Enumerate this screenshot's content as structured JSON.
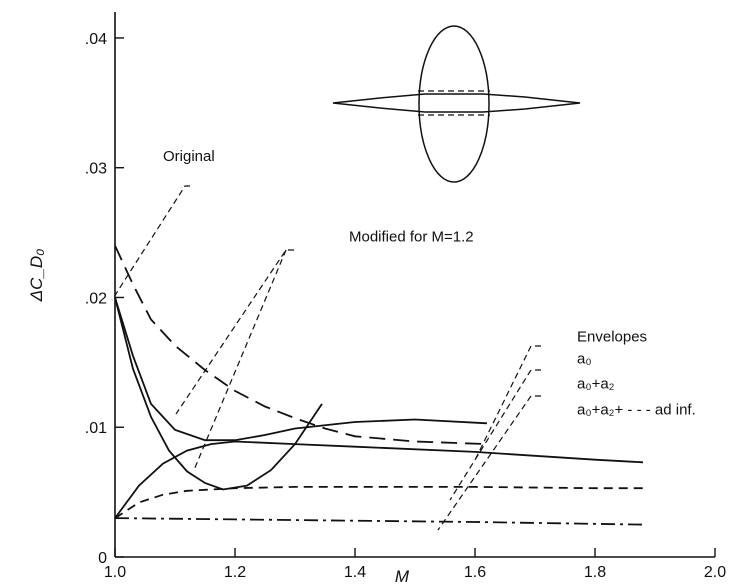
{
  "chart_data": {
    "type": "line",
    "xlabel": "M",
    "ylabel": "ΔC_D₀",
    "xlim": [
      1.0,
      2.0
    ],
    "ylim": [
      0,
      0.042
    ],
    "grid": false,
    "x_ticks": [
      {
        "v": 1.0,
        "label": "1.0"
      },
      {
        "v": 1.2,
        "label": "1.2"
      },
      {
        "v": 1.4,
        "label": "1.4"
      },
      {
        "v": 1.6,
        "label": "1.6"
      },
      {
        "v": 1.8,
        "label": "1.8"
      },
      {
        "v": 2.0,
        "label": "2.0"
      }
    ],
    "y_ticks": [
      {
        "v": 0,
        "label": "0"
      },
      {
        "v": 0.01,
        "label": ".01"
      },
      {
        "v": 0.02,
        "label": ".02"
      },
      {
        "v": 0.03,
        "label": ".03"
      },
      {
        "v": 0.04,
        "label": ".04"
      }
    ],
    "series": [
      {
        "name": "Original",
        "style": "long-dash",
        "points": [
          [
            1.0,
            0.024
          ],
          [
            1.03,
            0.021
          ],
          [
            1.06,
            0.0183
          ],
          [
            1.1,
            0.0163
          ],
          [
            1.15,
            0.0144
          ],
          [
            1.2,
            0.0128
          ],
          [
            1.25,
            0.0116
          ],
          [
            1.3,
            0.0107
          ],
          [
            1.35,
            0.0099
          ],
          [
            1.4,
            0.0093
          ],
          [
            1.5,
            0.0089
          ],
          [
            1.62,
            0.0087
          ]
        ]
      },
      {
        "name": "Modified for M=1.2",
        "style": "solid",
        "points": [
          [
            1.0,
            0.02
          ],
          [
            1.03,
            0.0145
          ],
          [
            1.06,
            0.0108
          ],
          [
            1.09,
            0.0082
          ],
          [
            1.12,
            0.0066
          ],
          [
            1.15,
            0.0057
          ],
          [
            1.18,
            0.0052
          ],
          [
            1.22,
            0.0055
          ],
          [
            1.26,
            0.0067
          ],
          [
            1.3,
            0.0087
          ],
          [
            1.345,
            0.0118
          ]
        ]
      },
      {
        "name": "Modified for M=1.2",
        "style": "solid",
        "points": [
          [
            1.0,
            0.02
          ],
          [
            1.03,
            0.0155
          ],
          [
            1.06,
            0.0118
          ],
          [
            1.1,
            0.0098
          ],
          [
            1.15,
            0.009
          ],
          [
            1.2,
            0.009
          ],
          [
            1.25,
            0.0094
          ],
          [
            1.3,
            0.0099
          ],
          [
            1.4,
            0.0104
          ],
          [
            1.5,
            0.0106
          ],
          [
            1.62,
            0.0103
          ]
        ]
      },
      {
        "name": "a₀",
        "style": "solid",
        "points": [
          [
            1.0,
            0.003
          ],
          [
            1.04,
            0.0055
          ],
          [
            1.08,
            0.0072
          ],
          [
            1.12,
            0.0082
          ],
          [
            1.16,
            0.0087
          ],
          [
            1.2,
            0.0089
          ],
          [
            1.3,
            0.0087
          ],
          [
            1.4,
            0.0085
          ],
          [
            1.6,
            0.0081
          ],
          [
            1.8,
            0.0075
          ],
          [
            1.88,
            0.0073
          ]
        ]
      },
      {
        "name": "a₀+a₂",
        "style": "dash",
        "points": [
          [
            1.0,
            0.003
          ],
          [
            1.04,
            0.0042
          ],
          [
            1.08,
            0.0048
          ],
          [
            1.12,
            0.0051
          ],
          [
            1.2,
            0.0053
          ],
          [
            1.3,
            0.0054
          ],
          [
            1.4,
            0.0054
          ],
          [
            1.6,
            0.0054
          ],
          [
            1.8,
            0.0053
          ],
          [
            1.88,
            0.0053
          ]
        ]
      },
      {
        "name": "a₀+a₂+ - - - ad inf.",
        "style": "dash-dot",
        "points": [
          [
            1.0,
            0.003
          ],
          [
            1.2,
            0.0029
          ],
          [
            1.4,
            0.0028
          ],
          [
            1.6,
            0.0027
          ],
          [
            1.88,
            0.0025
          ]
        ]
      }
    ],
    "annotations": [
      {
        "text": "Original",
        "x": 1.08,
        "y": 0.0305
      },
      {
        "text": "Modified for M=1.2",
        "x": 1.39,
        "y": 0.0243
      },
      {
        "text": "Envelopes",
        "x": 1.77,
        "y": 0.0166
      },
      {
        "text": "a₀",
        "x": 1.77,
        "y": 0.0149
      },
      {
        "text": "a₀+a₂",
        "x": 1.77,
        "y": 0.013
      },
      {
        "text": "a₀+a₂+ - - - ad inf.",
        "x": 1.77,
        "y": 0.011
      }
    ]
  }
}
